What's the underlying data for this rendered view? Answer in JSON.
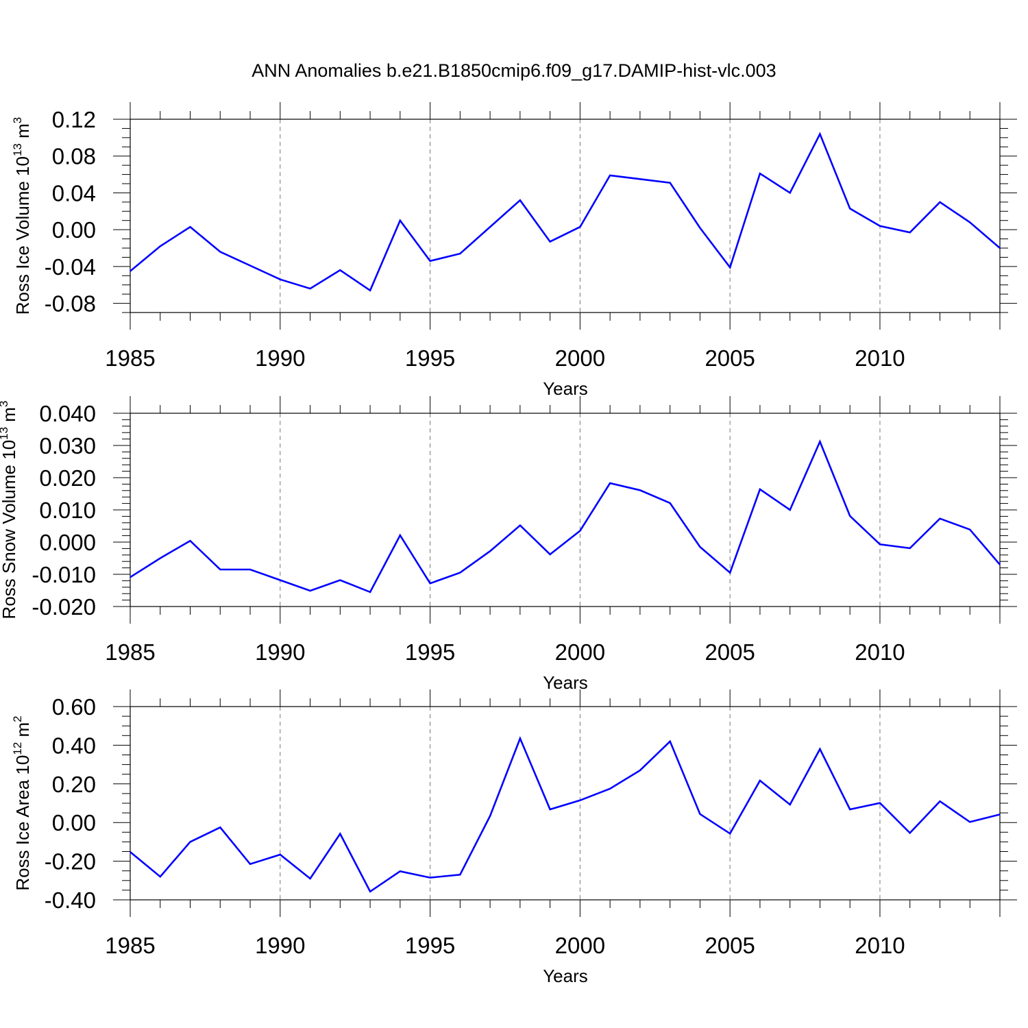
{
  "title": "ANN Anomalies b.e21.B1850cmip6.f09_g17.DAMIP-hist-vlc.003",
  "colors": {
    "line": "#0000ff",
    "frame": "#000000",
    "grid": "#777777"
  },
  "chart_data": [
    {
      "type": "line",
      "name": "ross-ice-volume",
      "ylabel": "Ross Ice Volume 10",
      "ylabel_sup1": "13",
      "ylabel_mid": " m",
      "ylabel_sup2": "3",
      "xlabel": "Years",
      "xlim": [
        1985,
        2014
      ],
      "ylim": [
        -0.09,
        0.12
      ],
      "xticks": [
        1985,
        1990,
        1995,
        2000,
        2005,
        2010
      ],
      "xtick_labels": [
        "1985",
        "1990",
        "1995",
        "2000",
        "2005",
        "2010"
      ],
      "yticks": [
        -0.08,
        -0.04,
        0.0,
        0.04,
        0.08,
        0.12
      ],
      "ytick_labels": [
        "-0.08",
        "-0.04",
        "0.00",
        "0.04",
        "0.08",
        "0.12"
      ],
      "y_minor_step": 0.01,
      "grid": "dashed vertical at major x ticks",
      "x": [
        1985,
        1986,
        1987,
        1988,
        1989,
        1990,
        1991,
        1992,
        1993,
        1994,
        1995,
        1996,
        1997,
        1998,
        1999,
        2000,
        2001,
        2002,
        2003,
        2004,
        2005,
        2006,
        2007,
        2008,
        2009,
        2010,
        2011,
        2012,
        2013,
        2014
      ],
      "y": [
        -0.045,
        -0.018,
        0.003,
        -0.024,
        -0.039,
        -0.054,
        -0.064,
        -0.044,
        -0.066,
        0.01,
        -0.034,
        -0.026,
        0.003,
        0.032,
        -0.013,
        0.003,
        0.059,
        0.055,
        0.051,
        0.002,
        -0.041,
        0.061,
        0.04,
        0.104,
        0.023,
        0.004,
        -0.003,
        0.03,
        0.008,
        -0.02
      ]
    },
    {
      "type": "line",
      "name": "ross-snow-volume",
      "ylabel": "Ross Snow Volume 10",
      "ylabel_sup1": "13",
      "ylabel_mid": " m",
      "ylabel_sup2": "3",
      "xlabel": "Years",
      "xlim": [
        1985,
        2014
      ],
      "ylim": [
        -0.02,
        0.04
      ],
      "xticks": [
        1985,
        1990,
        1995,
        2000,
        2005,
        2010
      ],
      "xtick_labels": [
        "1985",
        "1990",
        "1995",
        "2000",
        "2005",
        "2010"
      ],
      "yticks": [
        -0.02,
        -0.01,
        0.0,
        0.01,
        0.02,
        0.03,
        0.04
      ],
      "ytick_labels": [
        "-0.020",
        "-0.010",
        "0.000",
        "0.010",
        "0.020",
        "0.030",
        "0.040"
      ],
      "y_minor_step": 0.002,
      "grid": "dashed vertical at major x ticks",
      "x": [
        1985,
        1986,
        1987,
        1988,
        1989,
        1990,
        1991,
        1992,
        1993,
        1994,
        1995,
        1996,
        1997,
        1998,
        1999,
        2000,
        2001,
        2002,
        2003,
        2004,
        2005,
        2006,
        2007,
        2008,
        2009,
        2010,
        2011,
        2012,
        2013,
        2014
      ],
      "y": [
        -0.0109,
        -0.005,
        0.0004,
        -0.0085,
        -0.0085,
        -0.0118,
        -0.0151,
        -0.0118,
        -0.0155,
        0.0021,
        -0.0128,
        -0.0095,
        -0.0028,
        0.0052,
        -0.0038,
        0.0035,
        0.0183,
        0.0161,
        0.0121,
        -0.0015,
        -0.0095,
        0.0164,
        0.01,
        0.0312,
        0.0081,
        -0.0007,
        -0.0019,
        0.0073,
        0.0039,
        -0.007
      ]
    },
    {
      "type": "line",
      "name": "ross-ice-area",
      "ylabel": "Ross Ice Area 10",
      "ylabel_sup1": "12",
      "ylabel_mid": " m",
      "ylabel_sup2": "2",
      "xlabel": "Years",
      "xlim": [
        1985,
        2014
      ],
      "ylim": [
        -0.4,
        0.6
      ],
      "xticks": [
        1985,
        1990,
        1995,
        2000,
        2005,
        2010
      ],
      "xtick_labels": [
        "1985",
        "1990",
        "1995",
        "2000",
        "2005",
        "2010"
      ],
      "yticks": [
        -0.4,
        -0.2,
        0.0,
        0.2,
        0.4,
        0.6
      ],
      "ytick_labels": [
        "-0.40",
        "-0.20",
        "0.00",
        "0.20",
        "0.40",
        "0.60"
      ],
      "y_minor_step": 0.05,
      "grid": "dashed vertical at major x ticks",
      "x": [
        1985,
        1986,
        1987,
        1988,
        1989,
        1990,
        1991,
        1992,
        1993,
        1994,
        1995,
        1996,
        1997,
        1998,
        1999,
        2000,
        2001,
        2002,
        2003,
        2004,
        2005,
        2006,
        2007,
        2008,
        2009,
        2010,
        2011,
        2012,
        2013,
        2014
      ],
      "y": [
        -0.152,
        -0.28,
        -0.1,
        -0.025,
        -0.215,
        -0.166,
        -0.29,
        -0.058,
        -0.357,
        -0.252,
        -0.285,
        -0.27,
        0.034,
        0.435,
        0.068,
        0.115,
        0.175,
        0.27,
        0.42,
        0.044,
        -0.057,
        0.217,
        0.093,
        0.38,
        0.068,
        0.101,
        -0.054,
        0.11,
        0.003,
        0.042
      ]
    }
  ]
}
